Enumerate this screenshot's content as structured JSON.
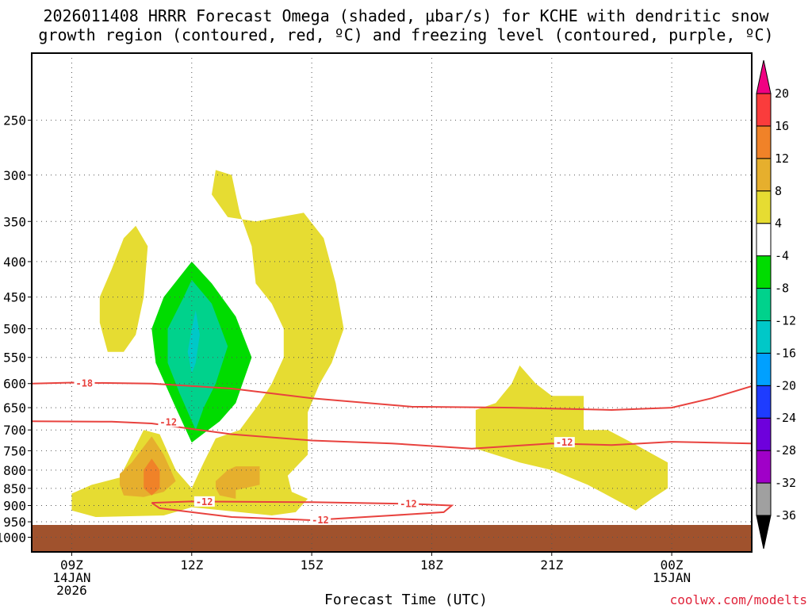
{
  "header": {
    "title_line1": "2026011408 HRRR Forecast Omega (shaded, μbar/s) for KCHE with dendritic snow",
    "title_line2": "growth region (contoured, red, ºC) and freezing level (contoured, purple, ºC)"
  },
  "footer": {
    "xlabel": "Forecast Time (UTC)",
    "credit": "coolwx.com/modelts"
  },
  "chart_data": {
    "type": "heatmap",
    "title": "2026011408 HRRR Forecast Omega (shaded, μbar/s) for KCHE with dendritic snow growth region (contoured, red, ºC) and freezing level (contoured, purple, ºC)",
    "xlabel": "Forecast Time (UTC)",
    "ylabel": "",
    "x_axis": {
      "unit": "hours",
      "range": [
        8,
        26
      ],
      "ticks": [
        {
          "h": 9,
          "lines": [
            "09Z",
            "14JAN",
            "2026"
          ]
        },
        {
          "h": 12,
          "lines": [
            "12Z"
          ]
        },
        {
          "h": 15,
          "lines": [
            "15Z"
          ]
        },
        {
          "h": 18,
          "lines": [
            "18Z"
          ]
        },
        {
          "h": 21,
          "lines": [
            "21Z"
          ]
        },
        {
          "h": 24,
          "lines": [
            "00Z",
            "15JAN"
          ]
        }
      ]
    },
    "y_axis": {
      "unit": "hPa",
      "scale": "log",
      "range": [
        1050,
        200
      ],
      "ticks": [
        250,
        300,
        350,
        400,
        450,
        500,
        550,
        600,
        650,
        700,
        750,
        800,
        850,
        900,
        950,
        1000
      ]
    },
    "grid": true,
    "ground": {
      "below_hPa": 960,
      "color": "#a0522d"
    },
    "colorbar": {
      "levels": [
        -36,
        -32,
        -28,
        -24,
        -20,
        -16,
        -12,
        -8,
        -4,
        4,
        8,
        12,
        16,
        20
      ],
      "colors": [
        "#000000",
        "#a0a0a0",
        "#a000c8",
        "#6e00dc",
        "#1e3cff",
        "#00a0ff",
        "#00c8c8",
        "#00d28c",
        "#00dc00",
        "#ffffff",
        "#e6dc32",
        "#e6af2d",
        "#f08228",
        "#fa3c3c",
        "#f00082"
      ],
      "extend": "both"
    },
    "omega_regions": [
      {
        "level": "4 to 8",
        "color": "#e6dc32",
        "points": [
          [
            9,
            865
          ],
          [
            9.5,
            840
          ],
          [
            10.2,
            820
          ],
          [
            10.8,
            700
          ],
          [
            11.2,
            710
          ],
          [
            11.6,
            800
          ],
          [
            12,
            850
          ],
          [
            12.3,
            780
          ],
          [
            12.6,
            720
          ],
          [
            13.2,
            700
          ],
          [
            13.7,
            640
          ],
          [
            14,
            600
          ],
          [
            14.3,
            550
          ],
          [
            14.3,
            500
          ],
          [
            14,
            460
          ],
          [
            13.6,
            430
          ],
          [
            13.5,
            380
          ],
          [
            13.2,
            340
          ],
          [
            13,
            300
          ],
          [
            12.6,
            295
          ],
          [
            12.5,
            320
          ],
          [
            12.9,
            345
          ],
          [
            13.6,
            350
          ],
          [
            14.2,
            345
          ],
          [
            14.8,
            340
          ],
          [
            15.3,
            370
          ],
          [
            15.6,
            430
          ],
          [
            15.8,
            500
          ],
          [
            15.5,
            560
          ],
          [
            15.2,
            600
          ],
          [
            14.9,
            660
          ],
          [
            14.9,
            760
          ],
          [
            14.4,
            815
          ],
          [
            14.5,
            860
          ],
          [
            14.9,
            880
          ],
          [
            14.6,
            920
          ],
          [
            14,
            930
          ],
          [
            12,
            905
          ],
          [
            11.3,
            930
          ],
          [
            9.6,
            935
          ],
          [
            9,
            915
          ]
        ]
      },
      {
        "level": "4 to 8",
        "color": "#e6dc32",
        "points": [
          [
            9.9,
            540
          ],
          [
            9.7,
            490
          ],
          [
            9.7,
            450
          ],
          [
            10,
            410
          ],
          [
            10.3,
            370
          ],
          [
            10.6,
            355
          ],
          [
            10.9,
            380
          ],
          [
            10.8,
            450
          ],
          [
            10.6,
            510
          ],
          [
            10.3,
            540
          ]
        ]
      },
      {
        "level": "4 to 8",
        "color": "#e6dc32",
        "points": [
          [
            19.1,
            655
          ],
          [
            19.6,
            640
          ],
          [
            20,
            600
          ],
          [
            20.2,
            565
          ],
          [
            20.6,
            600
          ],
          [
            21,
            625
          ],
          [
            21.8,
            625
          ],
          [
            21.8,
            700
          ],
          [
            22.4,
            700
          ],
          [
            23,
            730
          ],
          [
            23.9,
            780
          ],
          [
            23.9,
            850
          ],
          [
            23.5,
            880
          ],
          [
            23.1,
            915
          ],
          [
            22.4,
            870
          ],
          [
            21.9,
            840
          ],
          [
            21,
            800
          ],
          [
            20.2,
            780
          ],
          [
            19.1,
            745
          ]
        ]
      },
      {
        "level": "8 to 12",
        "color": "#e6af2d",
        "points": [
          [
            10.2,
            810
          ],
          [
            10.5,
            780
          ],
          [
            11,
            715
          ],
          [
            11.3,
            760
          ],
          [
            11.6,
            830
          ],
          [
            11.3,
            860
          ],
          [
            10.8,
            875
          ],
          [
            10.3,
            870
          ],
          [
            10.2,
            840
          ]
        ]
      },
      {
        "level": "8 to 12",
        "color": "#e6af2d",
        "points": [
          [
            12.6,
            830
          ],
          [
            12.9,
            800
          ],
          [
            13.1,
            790
          ],
          [
            13.7,
            790
          ],
          [
            13.7,
            840
          ],
          [
            13.1,
            855
          ],
          [
            13.1,
            880
          ],
          [
            12.7,
            870
          ],
          [
            12.6,
            850
          ]
        ]
      },
      {
        "level": "12 to 16",
        "color": "#f08228",
        "points": [
          [
            10.8,
            800
          ],
          [
            11,
            770
          ],
          [
            11.2,
            800
          ],
          [
            11.2,
            850
          ],
          [
            11,
            870
          ],
          [
            10.8,
            850
          ]
        ]
      },
      {
        "level": "-8 to -4",
        "color": "#00dc00",
        "points": [
          [
            11,
            500
          ],
          [
            11.3,
            450
          ],
          [
            12,
            400
          ],
          [
            12.5,
            430
          ],
          [
            13.1,
            480
          ],
          [
            13.5,
            550
          ],
          [
            13.1,
            640
          ],
          [
            12.7,
            680
          ],
          [
            12,
            730
          ],
          [
            11.6,
            650
          ],
          [
            11.1,
            560
          ]
        ]
      },
      {
        "level": "-12 to -8",
        "color": "#00d28c",
        "points": [
          [
            11.4,
            500
          ],
          [
            11.8,
            450
          ],
          [
            12,
            425
          ],
          [
            12.5,
            460
          ],
          [
            12.9,
            530
          ],
          [
            12.6,
            600
          ],
          [
            12.3,
            650
          ],
          [
            12.1,
            700
          ],
          [
            11.7,
            620
          ],
          [
            11.4,
            560
          ]
        ]
      },
      {
        "level": "-16 to -12",
        "color": "#00c8c8",
        "points": [
          [
            12,
            500
          ],
          [
            12.1,
            470
          ],
          [
            12.2,
            510
          ],
          [
            12.1,
            560
          ],
          [
            12,
            580
          ],
          [
            11.9,
            540
          ]
        ]
      }
    ],
    "contours": [
      {
        "label": "-18",
        "color": "#e8423e",
        "label_at": [
          9.1,
          600
        ],
        "points": [
          [
            8,
            600
          ],
          [
            9,
            598
          ],
          [
            11,
            600
          ],
          [
            13,
            610
          ],
          [
            15,
            630
          ],
          [
            17.5,
            648
          ],
          [
            20,
            650
          ],
          [
            22.5,
            655
          ],
          [
            24,
            650
          ],
          [
            25,
            630
          ],
          [
            26,
            605
          ]
        ]
      },
      {
        "label": "-12",
        "color": "#e8423e",
        "label_at": [
          21.1,
          730
        ],
        "points": [
          [
            8,
            680
          ],
          [
            10,
            681
          ],
          [
            11,
            685
          ],
          [
            13,
            710
          ],
          [
            15,
            725
          ],
          [
            17,
            732
          ],
          [
            19,
            745
          ],
          [
            21,
            732
          ],
          [
            22.5,
            736
          ],
          [
            24,
            728
          ],
          [
            26,
            732
          ]
        ]
      },
      {
        "label": "-12",
        "color": "#e8423e",
        "label_at": [
          11.2,
          682
        ],
        "points": []
      },
      {
        "label": "-12",
        "color": "#e8423e",
        "label_at": [
          12.1,
          889
        ],
        "closed": true,
        "label2": "-12",
        "label2_at": [
          17.2,
          895
        ],
        "label3": "-12",
        "label3_at": [
          15,
          945
        ],
        "points": [
          [
            11,
            892
          ],
          [
            12,
            888
          ],
          [
            15,
            890
          ],
          [
            17.5,
            895
          ],
          [
            18.5,
            900
          ],
          [
            18.3,
            920
          ],
          [
            17,
            930
          ],
          [
            15,
            945
          ],
          [
            13,
            935
          ],
          [
            11.2,
            908
          ]
        ]
      }
    ]
  }
}
